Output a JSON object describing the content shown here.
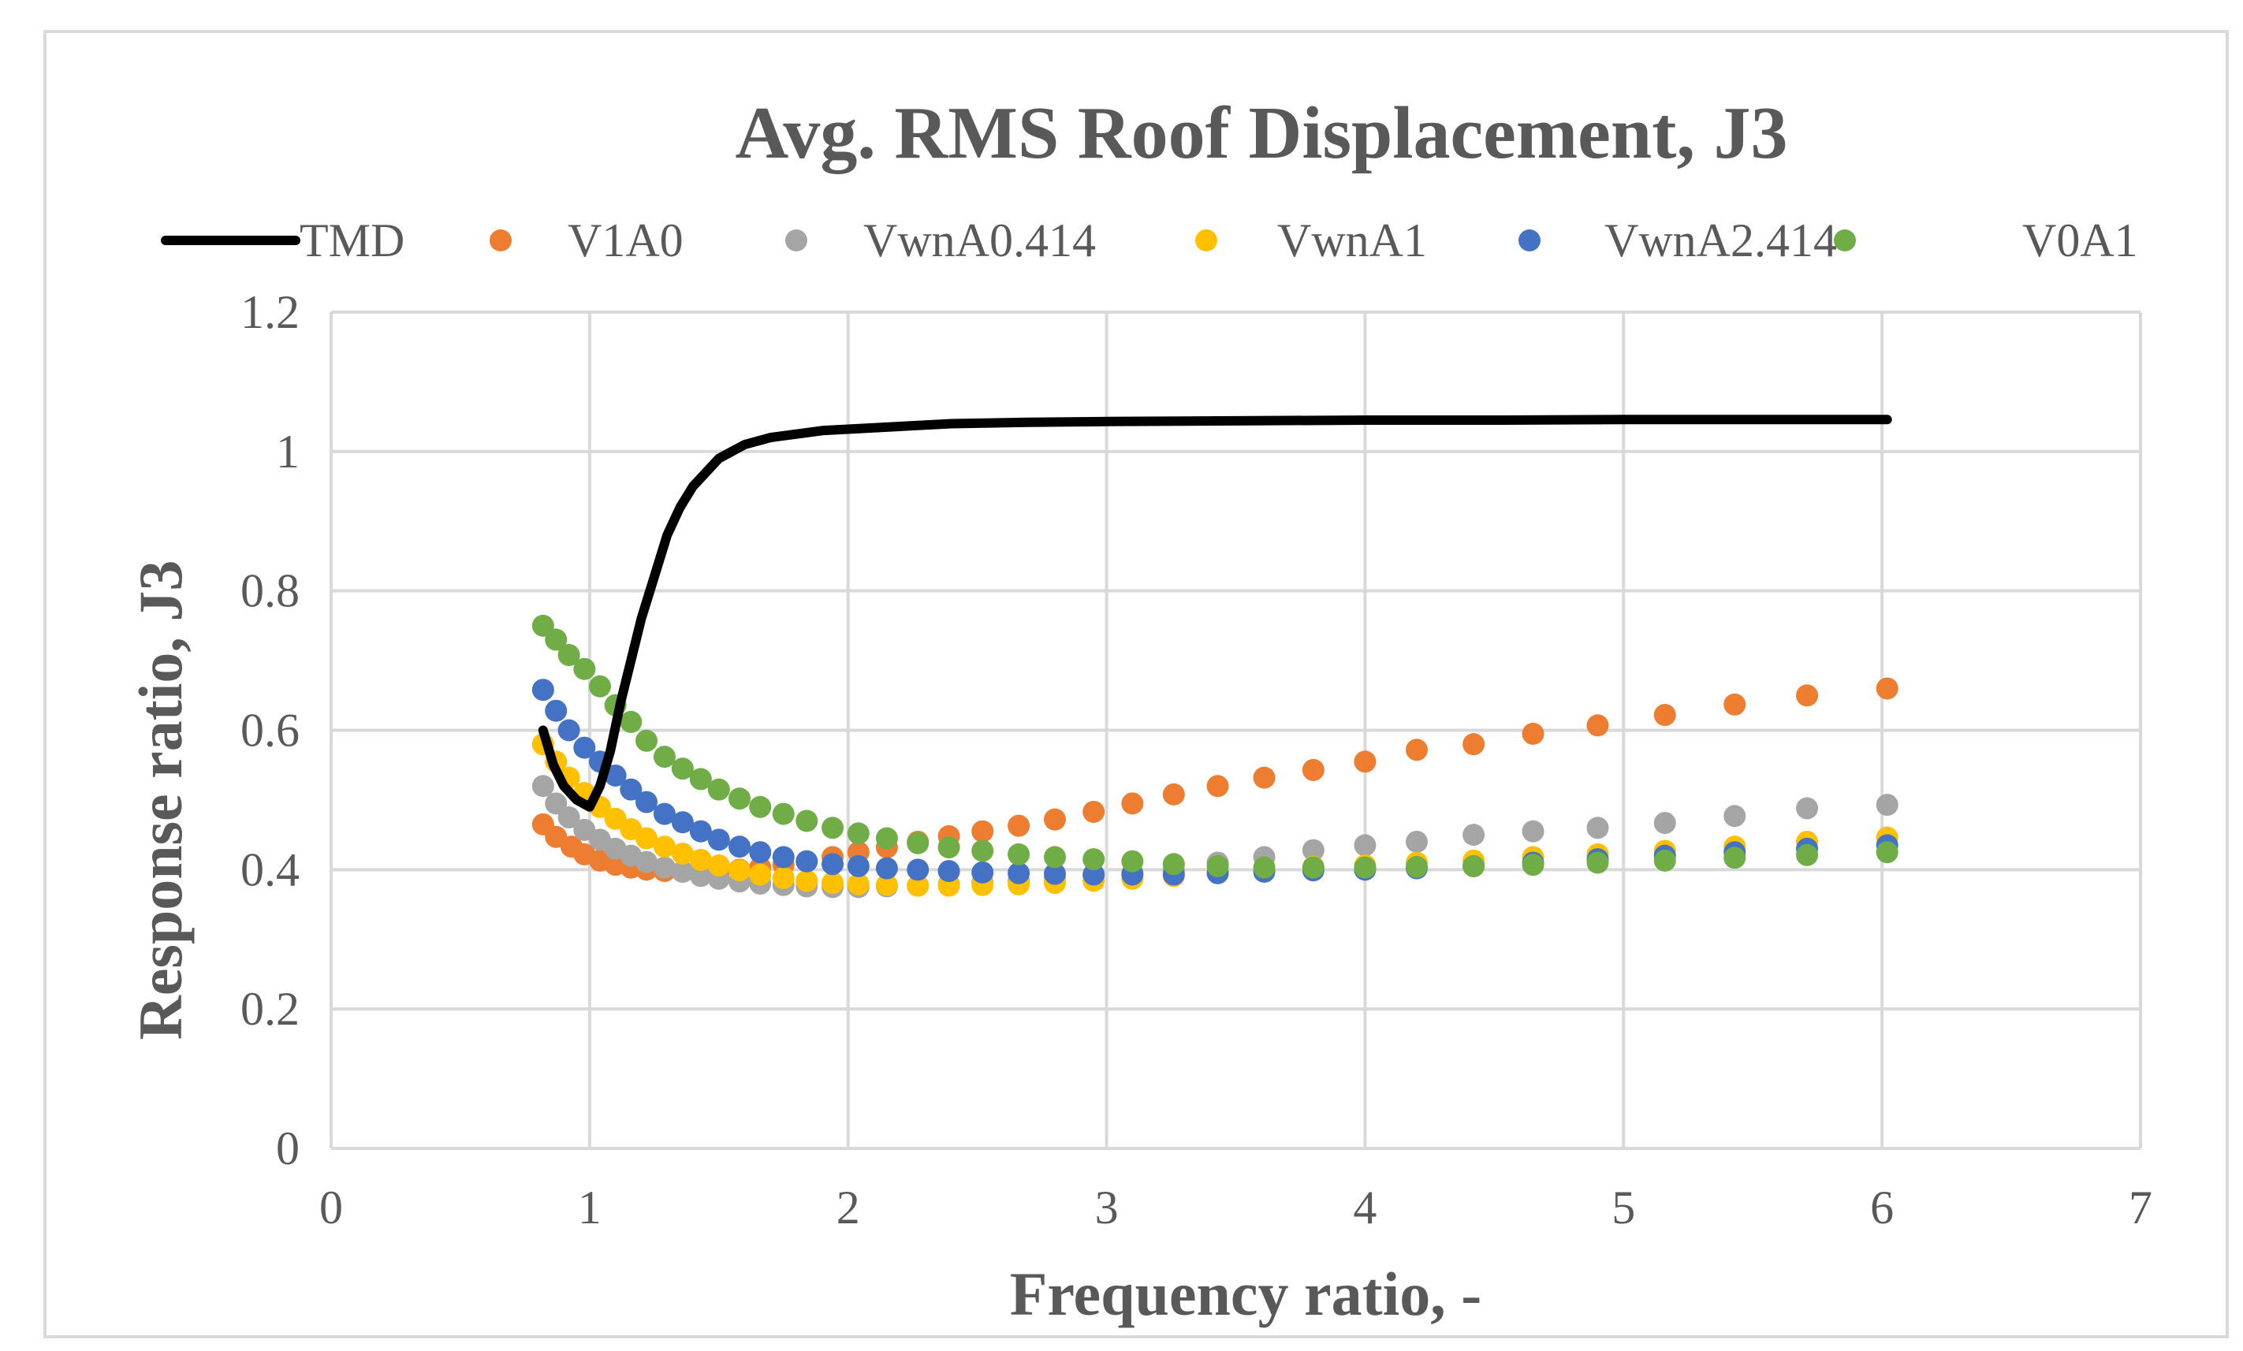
{
  "chart_data": {
    "type": "scatter",
    "title": "Avg. RMS Roof Displacement, J3",
    "xlabel": "Frequency ratio, -",
    "ylabel": "Response ratio, J3",
    "xlim": [
      0,
      7
    ],
    "ylim": [
      0,
      1.2
    ],
    "x_ticks": [
      "0",
      "1",
      "2",
      "3",
      "4",
      "5",
      "6",
      "7"
    ],
    "y_ticks": [
      "0",
      "0.2",
      "0.4",
      "0.6",
      "0.8",
      "1",
      "1.2"
    ],
    "grid": true,
    "legend_position": "top",
    "series": [
      {
        "name": "TMD",
        "style": "line",
        "color": "#000000",
        "x": [
          0.82,
          0.86,
          0.9,
          0.95,
          1.0,
          1.04,
          1.08,
          1.12,
          1.16,
          1.2,
          1.25,
          1.3,
          1.35,
          1.4,
          1.45,
          1.5,
          1.55,
          1.6,
          1.7,
          1.8,
          1.9,
          2.0,
          2.2,
          2.4,
          2.7,
          3.0,
          3.5,
          4.0,
          4.5,
          5.0,
          5.5,
          6.0,
          6.02
        ],
        "y": [
          0.6,
          0.55,
          0.52,
          0.5,
          0.49,
          0.52,
          0.57,
          0.64,
          0.7,
          0.76,
          0.82,
          0.88,
          0.92,
          0.95,
          0.97,
          0.99,
          1.0,
          1.01,
          1.02,
          1.025,
          1.03,
          1.032,
          1.036,
          1.04,
          1.042,
          1.043,
          1.044,
          1.045,
          1.045,
          1.046,
          1.046,
          1.046,
          1.046
        ]
      },
      {
        "name": "V1A0",
        "style": "marker",
        "color": "#ed7d31",
        "x": [
          0.82,
          0.87,
          0.93,
          0.98,
          1.04,
          1.1,
          1.16,
          1.22,
          1.29,
          1.36,
          1.43,
          1.5,
          1.58,
          1.66,
          1.75,
          1.84,
          1.94,
          2.04,
          2.15,
          2.27,
          2.39,
          2.52,
          2.66,
          2.8,
          2.95,
          3.1,
          3.26,
          3.43,
          3.61,
          3.8,
          4.0,
          4.2,
          4.42,
          4.65,
          4.9,
          5.16,
          5.43,
          5.71,
          6.02
        ],
        "y": [
          0.465,
          0.447,
          0.433,
          0.422,
          0.413,
          0.407,
          0.403,
          0.4,
          0.398,
          0.397,
          0.397,
          0.398,
          0.4,
          0.403,
          0.407,
          0.412,
          0.418,
          0.425,
          0.432,
          0.44,
          0.448,
          0.455,
          0.463,
          0.472,
          0.483,
          0.495,
          0.508,
          0.52,
          0.532,
          0.543,
          0.555,
          0.572,
          0.58,
          0.595,
          0.607,
          0.622,
          0.637,
          0.65,
          0.66
        ]
      },
      {
        "name": "VwnA0.414",
        "style": "marker",
        "color": "#a5a5a5",
        "x": [
          0.82,
          0.87,
          0.92,
          0.98,
          1.04,
          1.1,
          1.16,
          1.22,
          1.29,
          1.36,
          1.43,
          1.5,
          1.58,
          1.66,
          1.75,
          1.84,
          1.94,
          2.04,
          2.15,
          2.27,
          2.39,
          2.52,
          2.66,
          2.8,
          2.95,
          3.1,
          3.26,
          3.43,
          3.61,
          3.8,
          4.0,
          4.2,
          4.42,
          4.65,
          4.9,
          5.16,
          5.43,
          5.71,
          6.02
        ],
        "y": [
          0.52,
          0.495,
          0.475,
          0.457,
          0.443,
          0.43,
          0.42,
          0.411,
          0.403,
          0.397,
          0.391,
          0.387,
          0.383,
          0.38,
          0.378,
          0.376,
          0.375,
          0.375,
          0.376,
          0.377,
          0.379,
          0.381,
          0.384,
          0.387,
          0.391,
          0.395,
          0.4,
          0.41,
          0.418,
          0.428,
          0.435,
          0.44,
          0.45,
          0.455,
          0.46,
          0.467,
          0.477,
          0.488,
          0.493
        ]
      },
      {
        "name": "VwnA1",
        "style": "marker",
        "color": "#ffc000",
        "x": [
          0.82,
          0.87,
          0.92,
          0.98,
          1.04,
          1.1,
          1.16,
          1.22,
          1.29,
          1.36,
          1.43,
          1.5,
          1.58,
          1.66,
          1.75,
          1.84,
          1.94,
          2.04,
          2.15,
          2.27,
          2.39,
          2.52,
          2.66,
          2.8,
          2.95,
          3.1,
          3.26,
          3.43,
          3.61,
          3.8,
          4.0,
          4.2,
          4.42,
          4.65,
          4.9,
          5.16,
          5.43,
          5.71,
          6.02
        ],
        "y": [
          0.58,
          0.555,
          0.532,
          0.51,
          0.49,
          0.473,
          0.458,
          0.445,
          0.433,
          0.423,
          0.414,
          0.406,
          0.399,
          0.393,
          0.388,
          0.384,
          0.381,
          0.379,
          0.378,
          0.377,
          0.377,
          0.378,
          0.379,
          0.381,
          0.384,
          0.387,
          0.391,
          0.395,
          0.4,
          0.404,
          0.406,
          0.41,
          0.413,
          0.418,
          0.422,
          0.427,
          0.433,
          0.44,
          0.446
        ]
      },
      {
        "name": "VwnA2.414",
        "style": "marker",
        "color": "#4472c4",
        "x": [
          0.82,
          0.87,
          0.92,
          0.98,
          1.04,
          1.1,
          1.16,
          1.22,
          1.29,
          1.36,
          1.43,
          1.5,
          1.58,
          1.66,
          1.75,
          1.84,
          1.94,
          2.04,
          2.15,
          2.27,
          2.39,
          2.52,
          2.66,
          2.8,
          2.95,
          3.1,
          3.26,
          3.43,
          3.61,
          3.8,
          4.0,
          4.2,
          4.42,
          4.65,
          4.9,
          5.16,
          5.43,
          5.71,
          6.02
        ],
        "y": [
          0.658,
          0.628,
          0.6,
          0.575,
          0.555,
          0.535,
          0.515,
          0.497,
          0.48,
          0.468,
          0.455,
          0.443,
          0.433,
          0.425,
          0.418,
          0.412,
          0.408,
          0.405,
          0.402,
          0.4,
          0.398,
          0.396,
          0.395,
          0.394,
          0.393,
          0.393,
          0.393,
          0.395,
          0.397,
          0.399,
          0.4,
          0.402,
          0.405,
          0.41,
          0.415,
          0.42,
          0.425,
          0.43,
          0.435
        ]
      },
      {
        "name": "V0A1",
        "style": "marker",
        "color": "#70ad47",
        "x": [
          0.82,
          0.87,
          0.92,
          0.98,
          1.04,
          1.1,
          1.16,
          1.22,
          1.29,
          1.36,
          1.43,
          1.5,
          1.58,
          1.66,
          1.75,
          1.84,
          1.94,
          2.04,
          2.15,
          2.27,
          2.39,
          2.52,
          2.66,
          2.8,
          2.95,
          3.1,
          3.26,
          3.43,
          3.61,
          3.8,
          4.0,
          4.2,
          4.42,
          4.65,
          4.9,
          5.16,
          5.43,
          5.71,
          6.02
        ],
        "y": [
          0.75,
          0.73,
          0.708,
          0.688,
          0.663,
          0.636,
          0.612,
          0.585,
          0.562,
          0.545,
          0.53,
          0.515,
          0.502,
          0.49,
          0.48,
          0.47,
          0.46,
          0.452,
          0.445,
          0.438,
          0.432,
          0.427,
          0.422,
          0.418,
          0.415,
          0.412,
          0.408,
          0.405,
          0.403,
          0.403,
          0.403,
          0.404,
          0.405,
          0.407,
          0.41,
          0.413,
          0.417,
          0.421,
          0.425
        ]
      }
    ]
  }
}
